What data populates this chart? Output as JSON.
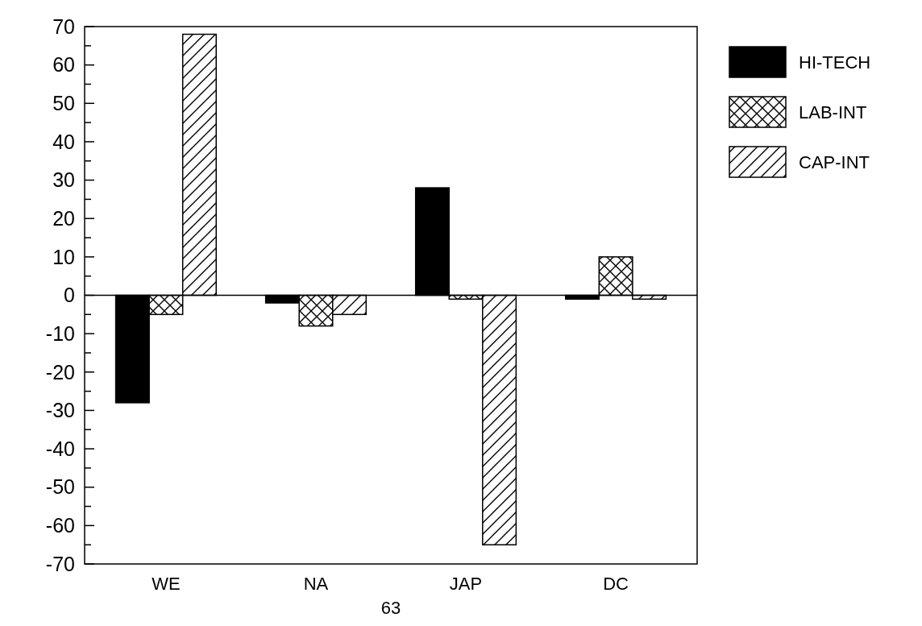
{
  "chart_data": {
    "type": "bar",
    "categories": [
      "WE",
      "NA",
      "JAP",
      "DC"
    ],
    "series": [
      {
        "name": "HI-TECH",
        "color": "#000000",
        "values": [
          -28,
          -2,
          28,
          -1
        ]
      },
      {
        "name": "LAB-INT",
        "color": "#000000",
        "values": [
          -5,
          -8,
          -1,
          10
        ]
      },
      {
        "name": "CAP-INT",
        "color": "#000000",
        "values": [
          68,
          -5,
          -65,
          -1
        ]
      }
    ],
    "ylim": [
      -70,
      70
    ],
    "yticks": [
      -70,
      {
        "value": -65,
        "label": null
      },
      -60,
      {
        "value": -55,
        "label": null
      },
      -50,
      {
        "value": -45,
        "label": null
      },
      -40,
      {
        "value": -35,
        "label": null
      },
      -30,
      {
        "value": -25,
        "label": null
      },
      -20,
      {
        "value": -15,
        "label": null
      },
      -10,
      {
        "value": -5,
        "label": null
      },
      0,
      {
        "value": 5,
        "label": null
      },
      10,
      {
        "value": 15,
        "label": null
      },
      20,
      {
        "value": 25,
        "label": null
      },
      30,
      {
        "value": 35,
        "label": null
      },
      40,
      {
        "value": 45,
        "label": null
      },
      50,
      {
        "value": 55,
        "label": null
      },
      60,
      {
        "value": 65,
        "label": null
      },
      70
    ],
    "legend": "right",
    "annotations": [
      "63"
    ]
  }
}
